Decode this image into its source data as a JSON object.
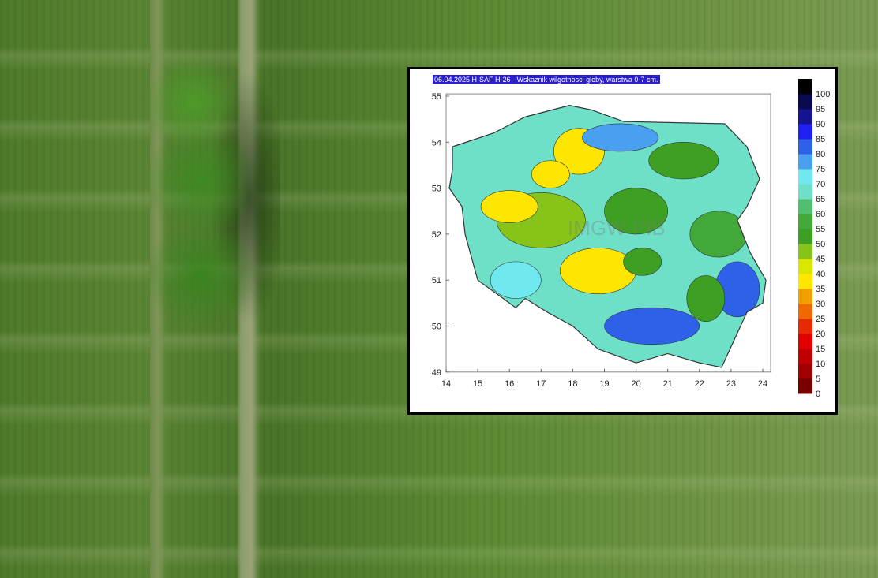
{
  "map": {
    "title": "06.04.2025 H-SAF H-26 - Wskaznik wilgotnosci gleby, warstwa 0-7 cm.",
    "title_bg": "#2a1fcf",
    "watermark": "IMGW-PIB",
    "lon_ticks": [
      14,
      15,
      16,
      17,
      18,
      19,
      20,
      21,
      22,
      23,
      24
    ],
    "lat_ticks": [
      49,
      50,
      51,
      52,
      53,
      54,
      55
    ],
    "lon_range": [
      14,
      24.25
    ],
    "lat_range": [
      49,
      55.05
    ],
    "colorbar": {
      "labels": [
        0,
        5,
        10,
        15,
        20,
        25,
        30,
        35,
        40,
        45,
        50,
        55,
        60,
        65,
        70,
        75,
        80,
        85,
        90,
        95,
        100
      ],
      "colors": [
        "#7a0000",
        "#a00000",
        "#c00000",
        "#e00000",
        "#e82a00",
        "#ee6a00",
        "#f2a000",
        "#ffe600",
        "#d8e600",
        "#86c41a",
        "#3ea022",
        "#42a83a",
        "#50c070",
        "#6ee0c8",
        "#70e8f0",
        "#4aa0f0",
        "#2e60e8",
        "#2020f0",
        "#141490",
        "#0a0a50",
        "#000000"
      ]
    }
  }
}
